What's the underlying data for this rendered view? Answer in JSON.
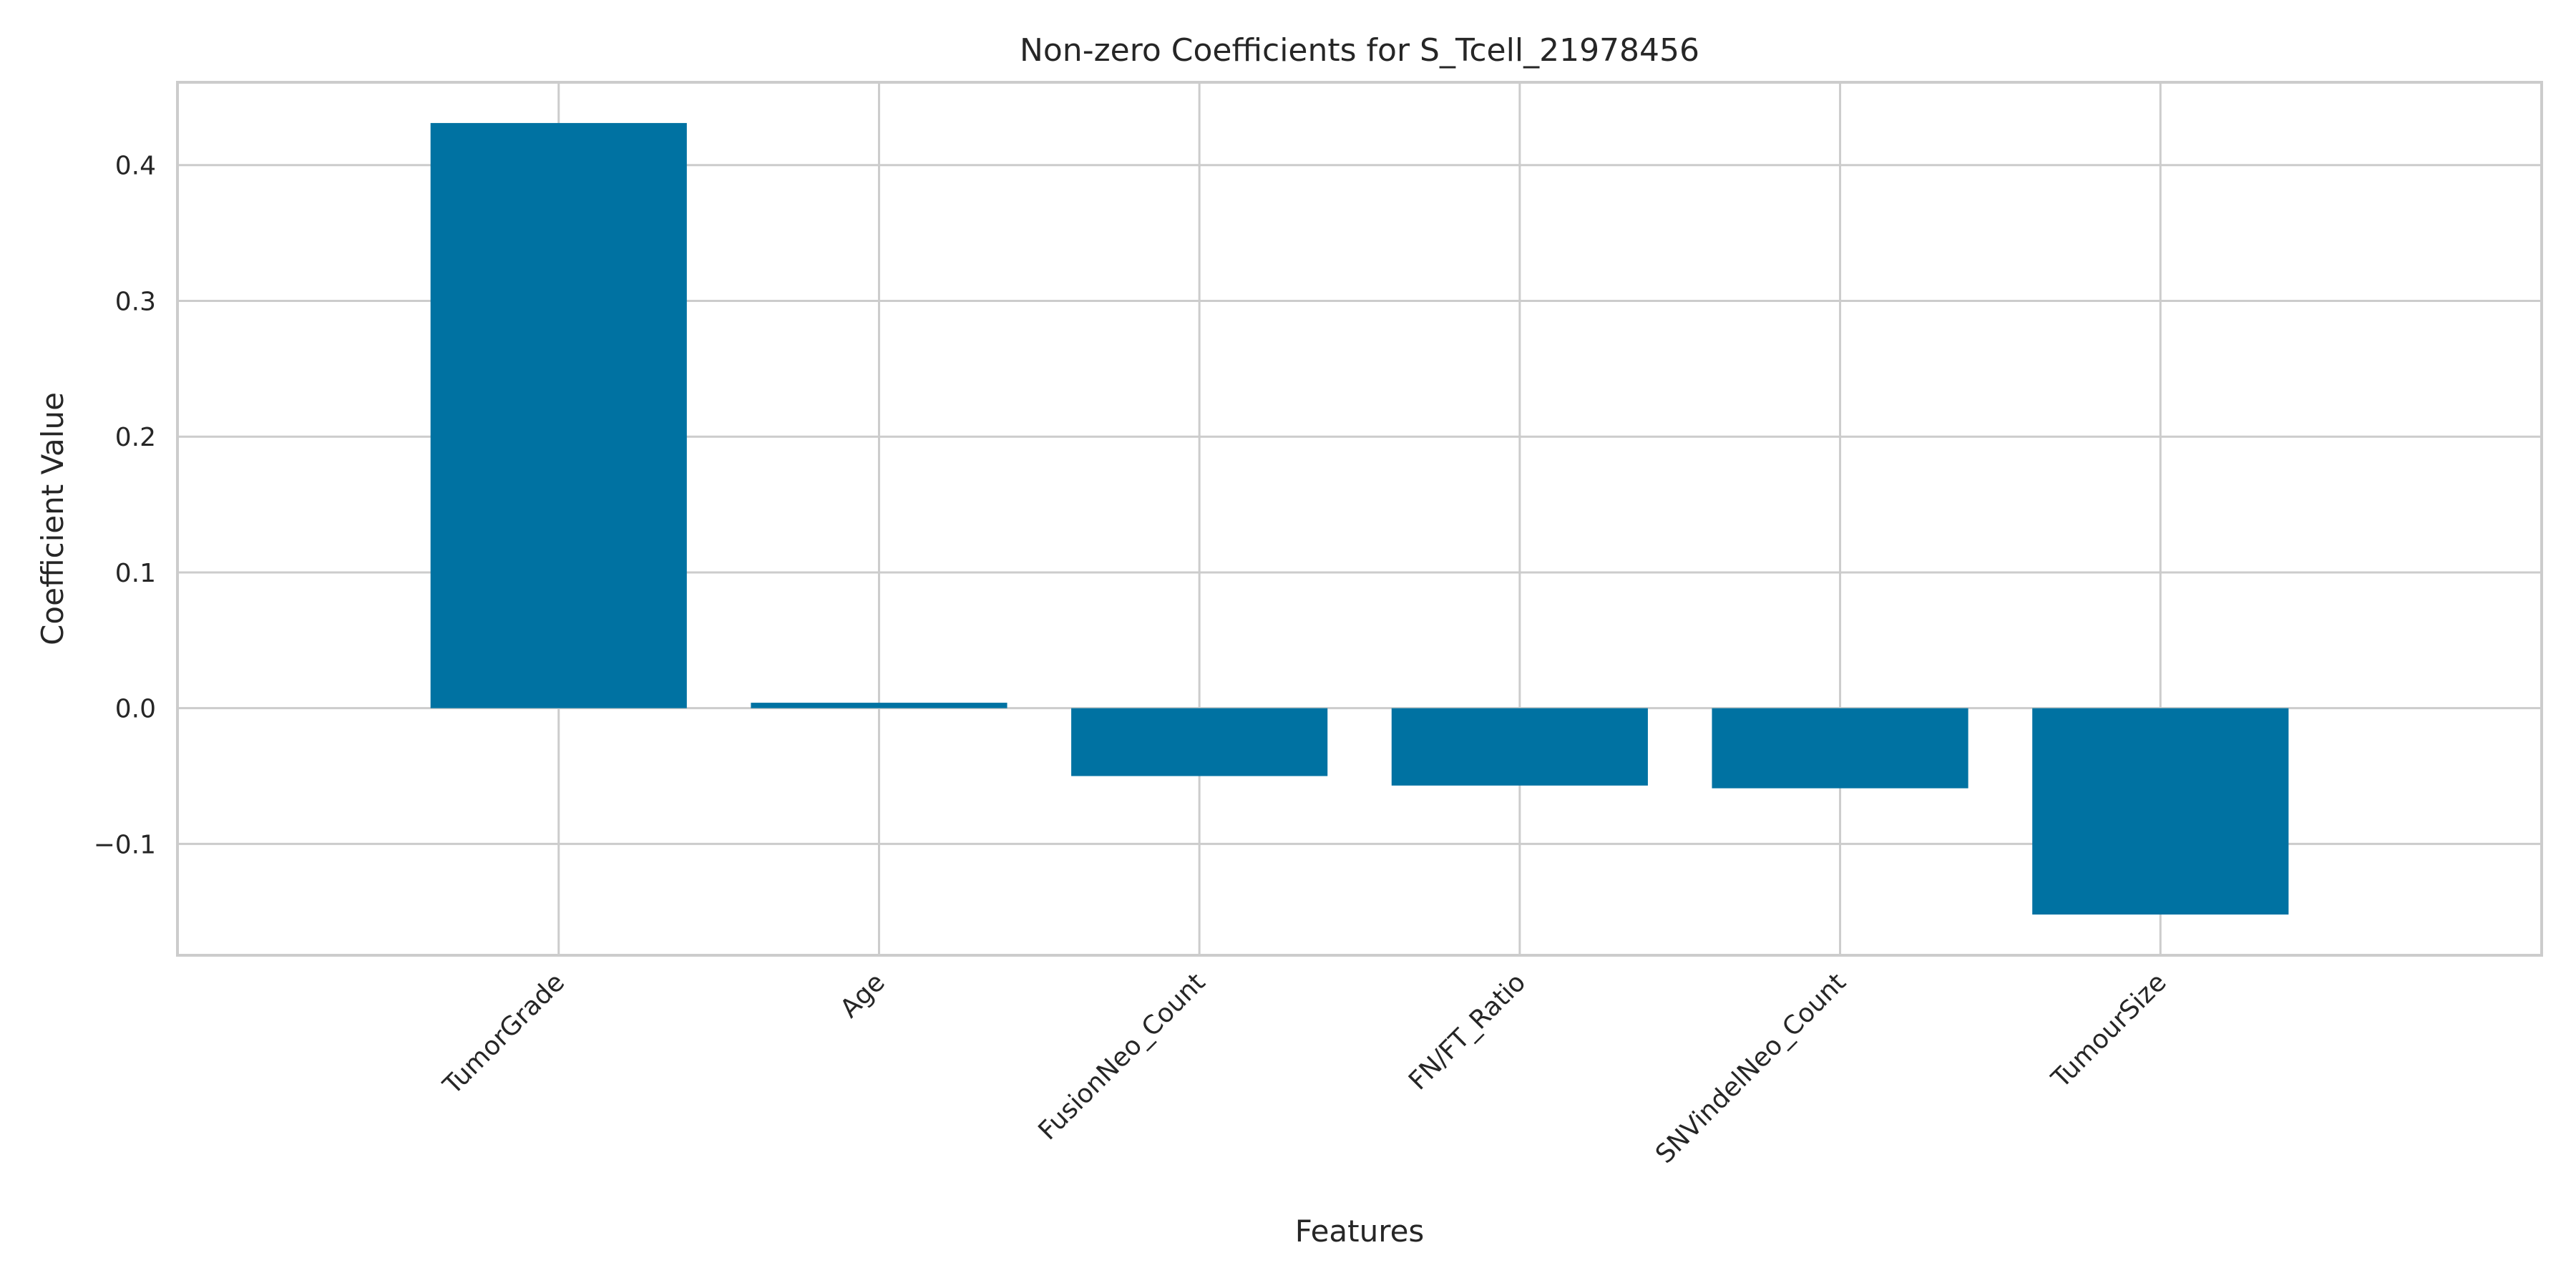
{
  "chart_data": {
    "type": "bar",
    "title": "Non-zero Coefficients for S_Tcell_21978456",
    "xlabel": "Features",
    "ylabel": "Coefficient Value",
    "categories": [
      "TumorGrade",
      "Age",
      "FusionNeo_Count",
      "FN/FT_Ratio",
      "SNVindelNeo_Count",
      "TumourSize"
    ],
    "values": [
      0.431,
      0.004,
      -0.05,
      -0.057,
      -0.059,
      -0.152
    ],
    "ylim": [
      -0.182,
      0.461
    ],
    "yticks": [
      -0.1,
      0.0,
      0.1,
      0.2,
      0.3,
      0.4
    ],
    "ytick_labels": [
      "−0.1",
      "0.0",
      "0.1",
      "0.2",
      "0.3",
      "0.4"
    ],
    "grid": true,
    "bar_color": "#0072a2",
    "grid_color": "#cccccc"
  }
}
